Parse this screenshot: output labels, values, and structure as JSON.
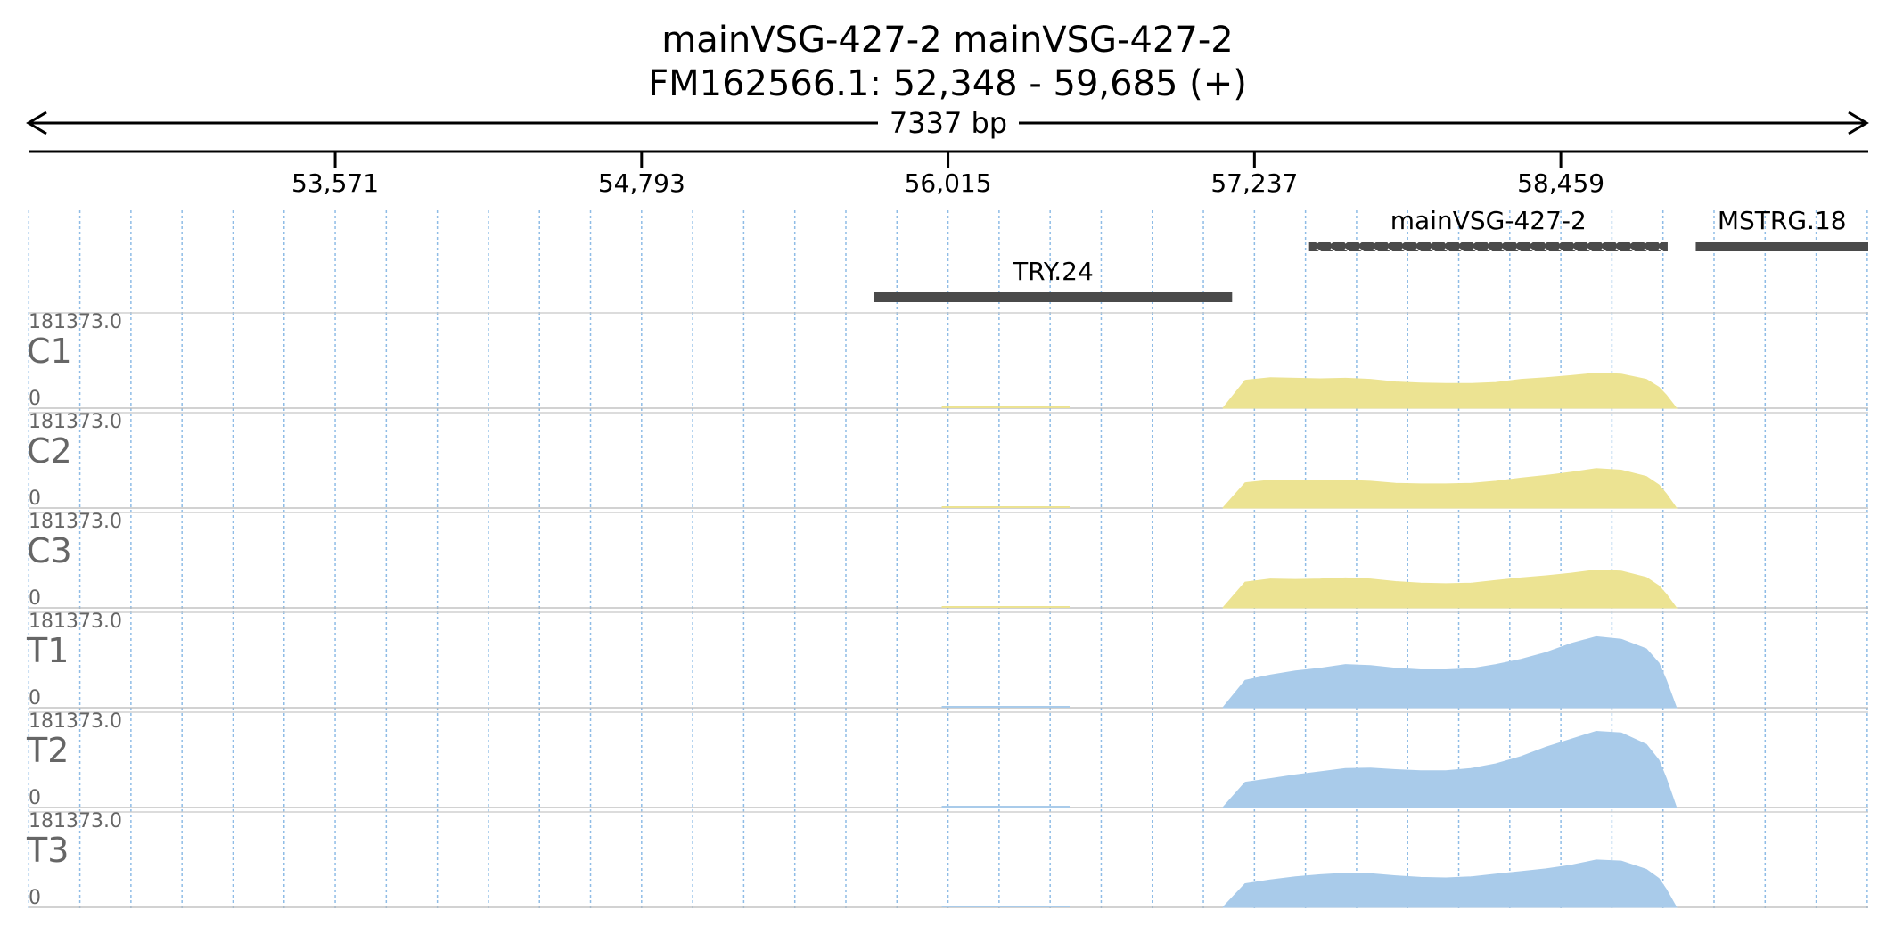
{
  "header": {
    "title": "mainVSG-427-2  mainVSG-427-2",
    "locus": "FM162566.1: 52,348 - 59,685 (+)",
    "span": "7337 bp"
  },
  "region": {
    "start": 52348,
    "end": 59685
  },
  "ruler": {
    "ticks": [
      {
        "pos": 53571,
        "label": "53,571"
      },
      {
        "pos": 54793,
        "label": "54,793"
      },
      {
        "pos": 56015,
        "label": "56,015"
      },
      {
        "pos": 57237,
        "label": "57,237"
      },
      {
        "pos": 58459,
        "label": "58,459"
      }
    ]
  },
  "features": [
    {
      "name": "mainVSG-427-2",
      "start": 57455,
      "end": 58885,
      "strand": "+",
      "row": 0
    },
    {
      "name": "MSTRG.18",
      "start": 58997,
      "end": 60060,
      "strand": "",
      "row": 0
    },
    {
      "name": "TRY.24",
      "start": 55720,
      "end": 57148,
      "strand": "",
      "row": 1
    }
  ],
  "tracks": [
    {
      "name": "C1",
      "max_label": "181373.0",
      "min_label": "0",
      "color": "#ece392"
    },
    {
      "name": "C2",
      "max_label": "181373.0",
      "min_label": "0",
      "color": "#ece392"
    },
    {
      "name": "C3",
      "max_label": "181373.0",
      "min_label": "0",
      "color": "#ece392"
    },
    {
      "name": "T1",
      "max_label": "181373.0",
      "min_label": "0",
      "color": "#a9cbea"
    },
    {
      "name": "T2",
      "max_label": "181373.0",
      "min_label": "0",
      "color": "#a9cbea"
    },
    {
      "name": "T3",
      "max_label": "181373.0",
      "min_label": "0",
      "color": "#a9cbea"
    }
  ],
  "chart_data": {
    "type": "area",
    "x_unit": "bp",
    "x": [
      57111,
      57200,
      57300,
      57400,
      57500,
      57600,
      57700,
      57800,
      57900,
      58000,
      58100,
      58200,
      58300,
      58400,
      58500,
      58600,
      58700,
      58800,
      58850,
      58880,
      58920
    ],
    "series": [
      {
        "name": "C1",
        "values": [
          0,
          53000,
          58000,
          57000,
          56000,
          57000,
          55000,
          50000,
          48000,
          47000,
          47000,
          49000,
          55000,
          58000,
          62000,
          67000,
          65000,
          55000,
          40000,
          25000,
          0
        ]
      },
      {
        "name": "C2",
        "values": [
          0,
          48000,
          53000,
          52000,
          52000,
          53000,
          51000,
          47000,
          46000,
          46000,
          47000,
          51000,
          57000,
          62000,
          68000,
          75000,
          72000,
          60000,
          44000,
          27000,
          0
        ]
      },
      {
        "name": "C3",
        "values": [
          0,
          49000,
          55000,
          54000,
          55000,
          57000,
          55000,
          50000,
          47000,
          46000,
          47000,
          52000,
          57000,
          61000,
          66000,
          72000,
          70000,
          58000,
          42000,
          26000,
          0
        ]
      },
      {
        "name": "T1",
        "values": [
          0,
          52000,
          62000,
          70000,
          75000,
          82000,
          80000,
          75000,
          72000,
          72000,
          74000,
          82000,
          92000,
          105000,
          122000,
          135000,
          130000,
          112000,
          85000,
          52000,
          0
        ]
      },
      {
        "name": "T2",
        "values": [
          0,
          48000,
          55000,
          62000,
          68000,
          74000,
          75000,
          72000,
          70000,
          70000,
          74000,
          83000,
          97000,
          115000,
          130000,
          145000,
          142000,
          120000,
          90000,
          55000,
          0
        ]
      },
      {
        "name": "T3",
        "values": [
          0,
          45000,
          52000,
          58000,
          62000,
          65000,
          64000,
          60000,
          57000,
          56000,
          58000,
          63000,
          68000,
          73000,
          80000,
          90000,
          88000,
          72000,
          55000,
          34000,
          0
        ]
      }
    ],
    "ylim": [
      0,
      181373.0
    ],
    "grid": true
  }
}
